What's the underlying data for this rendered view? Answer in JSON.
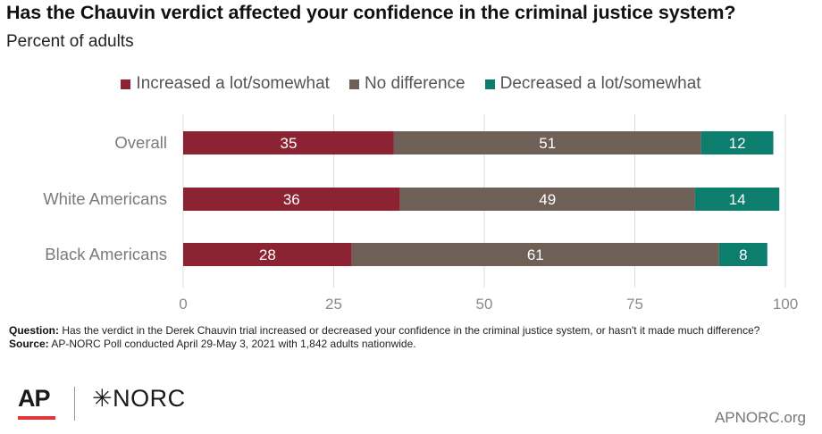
{
  "header": {
    "title": "Has the Chauvin verdict affected your confidence in the criminal justice system?",
    "subtitle": "Percent of adults"
  },
  "legend": [
    {
      "label": "Increased a lot/somewhat",
      "color": "#8b2332"
    },
    {
      "label": "No difference",
      "color": "#6e5f57"
    },
    {
      "label": "Decreased a lot/somewhat",
      "color": "#0d7d6e"
    }
  ],
  "chart_data": {
    "type": "bar",
    "orientation": "horizontal",
    "stacked": true,
    "categories": [
      "Overall",
      "White Americans",
      "Black Americans"
    ],
    "series": [
      {
        "name": "Increased a lot/somewhat",
        "values": [
          35,
          36,
          28
        ],
        "color": "#8b2332"
      },
      {
        "name": "No difference",
        "values": [
          51,
          49,
          61
        ],
        "color": "#6e5f57"
      },
      {
        "name": "Decreased a lot/somewhat",
        "values": [
          12,
          14,
          8
        ],
        "color": "#0d7d6e"
      }
    ],
    "xlim": [
      0,
      100
    ],
    "xticks": [
      0,
      25,
      50,
      75,
      100
    ],
    "grid": true,
    "legend_position": "top"
  },
  "notes": {
    "question_label": "Question:",
    "question_text": "Has the verdict in the Derek Chauvin trial increased or decreased your confidence in the criminal justice system, or hasn't it made much difference?",
    "source_label": "Source:",
    "source_text": "AP-NORC Poll conducted April 29-May 3, 2021 with 1,842 adults nationwide."
  },
  "footer": {
    "logo_ap": "AP",
    "logo_norc": "✳NORC",
    "site": "APNORC.org"
  }
}
